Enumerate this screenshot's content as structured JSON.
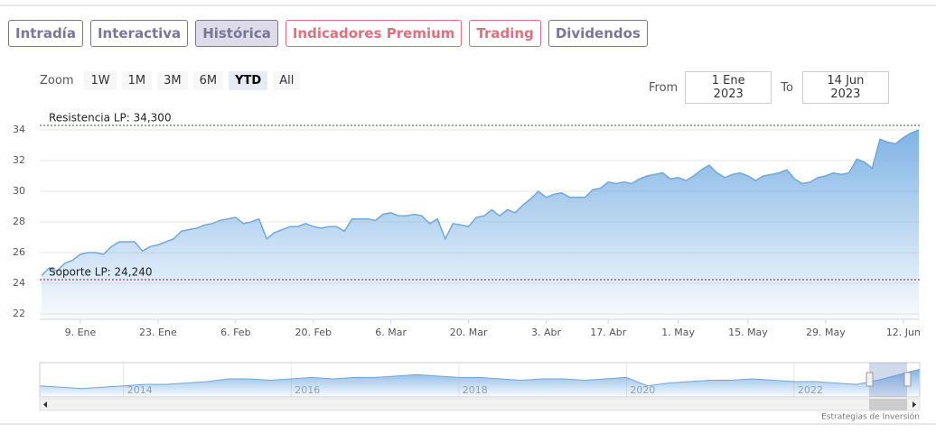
{
  "tabs": [
    {
      "label": "Intradía",
      "color": "#7a7699"
    },
    {
      "label": "Interactiva",
      "color": "#7a7699"
    },
    {
      "label": "Histórica",
      "color": "#7a7699"
    },
    {
      "label": "Indicadores Premium",
      "color": "#e0707e"
    },
    {
      "label": "Trading",
      "color": "#e0707e"
    },
    {
      "label": "Dividendos",
      "color": "#7a7699"
    }
  ],
  "selected_tab": 2,
  "zoom": {
    "label": "Zoom",
    "buttons": [
      "1W",
      "1M",
      "3M",
      "6M",
      "YTD",
      "All"
    ],
    "selected": 4
  },
  "range": {
    "from_label": "From",
    "from": "1 Ene 2023",
    "to_label": "To",
    "to": "14 Jun 2023"
  },
  "chart_data": {
    "type": "area",
    "color": "#6fa8dc",
    "categories": [
      null,
      null,
      null,
      null,
      null,
      "9. Ene",
      null,
      null,
      null,
      null,
      null,
      null,
      null,
      null,
      null,
      "23. Ene",
      null,
      null,
      null,
      null,
      null,
      null,
      null,
      null,
      null,
      "6. Feb",
      null,
      null,
      null,
      null,
      null,
      null,
      null,
      null,
      null,
      "20. Feb",
      null,
      null,
      null,
      null,
      null,
      null,
      null,
      null,
      null,
      "6. Mar",
      null,
      null,
      null,
      null,
      null,
      null,
      null,
      null,
      null,
      "20. Mar",
      null,
      null,
      null,
      null,
      null,
      null,
      null,
      null,
      null,
      "3. Abr",
      null,
      null,
      null,
      null,
      null,
      null,
      null,
      "17. Abr",
      null,
      null,
      null,
      null,
      null,
      null,
      null,
      null,
      "1. May",
      null,
      null,
      null,
      null,
      null,
      null,
      null,
      null,
      "15. May",
      null,
      null,
      null,
      null,
      null,
      null,
      null,
      null,
      null,
      "29. May",
      null,
      null,
      null,
      null,
      null,
      null,
      null,
      null,
      null,
      "12. Jun",
      null,
      null
    ],
    "values": [
      24.5,
      25.0,
      24.8,
      25.3,
      25.5,
      25.9,
      26.0,
      26.0,
      25.9,
      26.4,
      26.7,
      26.7,
      26.7,
      26.1,
      26.4,
      26.5,
      26.7,
      26.9,
      27.4,
      27.5,
      27.6,
      27.8,
      27.9,
      28.1,
      28.2,
      28.3,
      27.9,
      28.0,
      28.2,
      26.9,
      27.3,
      27.5,
      27.7,
      27.7,
      27.9,
      27.7,
      27.6,
      27.7,
      27.7,
      27.4,
      28.2,
      28.2,
      28.2,
      28.1,
      28.5,
      28.6,
      28.4,
      28.4,
      28.5,
      28.4,
      27.9,
      28.2,
      26.9,
      27.9,
      27.8,
      27.7,
      28.3,
      28.4,
      28.8,
      28.4,
      28.8,
      28.6,
      29.1,
      29.5,
      30.0,
      29.6,
      29.8,
      29.9,
      29.6,
      29.6,
      29.6,
      30.1,
      30.2,
      30.6,
      30.5,
      30.6,
      30.5,
      30.8,
      31.0,
      31.1,
      31.2,
      30.8,
      30.9,
      30.7,
      31.0,
      31.4,
      31.7,
      31.2,
      30.9,
      31.1,
      31.2,
      31.0,
      30.7,
      31.0,
      31.1,
      31.2,
      31.4,
      30.8,
      30.5,
      30.6,
      30.9,
      31.0,
      31.2,
      31.1,
      31.2,
      32.1,
      31.9,
      31.5,
      33.4,
      33.2,
      33.1,
      33.5,
      33.8,
      34.0
    ],
    "ylim": [
      21.65,
      35.65
    ],
    "yticks": [
      22,
      24,
      26,
      28,
      30,
      32,
      34
    ],
    "grid": true,
    "plot_lines": [
      {
        "label": "Resistencia LP: 34,300",
        "value": 34.3,
        "color": "#2f5a2f"
      },
      {
        "label": "Soporte LP: 24,240",
        "value": 24.24,
        "color": "#7a1f30"
      }
    ]
  },
  "navigator": {
    "type": "area",
    "color": "#6fa8dc",
    "x": [
      2013,
      2013.25,
      2013.5,
      2013.75,
      2014,
      2014.25,
      2014.5,
      2014.75,
      2015,
      2015.25,
      2015.5,
      2015.75,
      2016,
      2016.25,
      2016.5,
      2016.75,
      2017,
      2017.25,
      2017.5,
      2017.75,
      2018,
      2018.25,
      2018.5,
      2018.75,
      2019,
      2019.25,
      2019.5,
      2019.75,
      2020,
      2020.25,
      2020.5,
      2020.75,
      2021,
      2021.25,
      2021.5,
      2021.75,
      2022,
      2022.25,
      2022.5,
      2022.75,
      2023,
      2023.25,
      2023.5
    ],
    "values": [
      22,
      21,
      20,
      21,
      22,
      23,
      23,
      24,
      25,
      27,
      27,
      26,
      27,
      28,
      27,
      28,
      28,
      29,
      30,
      29,
      28,
      28,
      27,
      26,
      27,
      27,
      26,
      27,
      28,
      22,
      24,
      25,
      26,
      26,
      27,
      26,
      25,
      25,
      24,
      23,
      26,
      30,
      34
    ],
    "xlim": [
      2013,
      2023.5
    ],
    "xticks": [
      2014,
      2016,
      2018,
      2020,
      2022
    ],
    "ylim": [
      14,
      38
    ]
  },
  "credit": "Estrategias de Inversión"
}
